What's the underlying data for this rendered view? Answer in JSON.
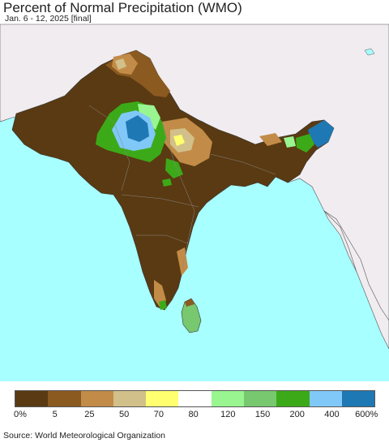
{
  "header": {
    "title": "Percent of Normal Precipitation (WMO)",
    "subtitle": "Jan. 6 - 12, 2025 [final]"
  },
  "legend": {
    "colors": [
      "#5a3a12",
      "#8b5a20",
      "#c28c48",
      "#d2c08a",
      "#ffff70",
      "#ffffff",
      "#98f590",
      "#78c870",
      "#3caa18",
      "#80c8f8",
      "#1e78b4"
    ],
    "labels": [
      "0%",
      "5",
      "25",
      "50",
      "70",
      "80",
      "120",
      "150",
      "200",
      "400",
      "600%"
    ]
  },
  "map": {
    "ocean_color": "#a8ffff",
    "land_outside_color": "#f0ecf0",
    "region": "South Asia"
  },
  "footer": {
    "source": "Source: World Meteorological Organization"
  }
}
